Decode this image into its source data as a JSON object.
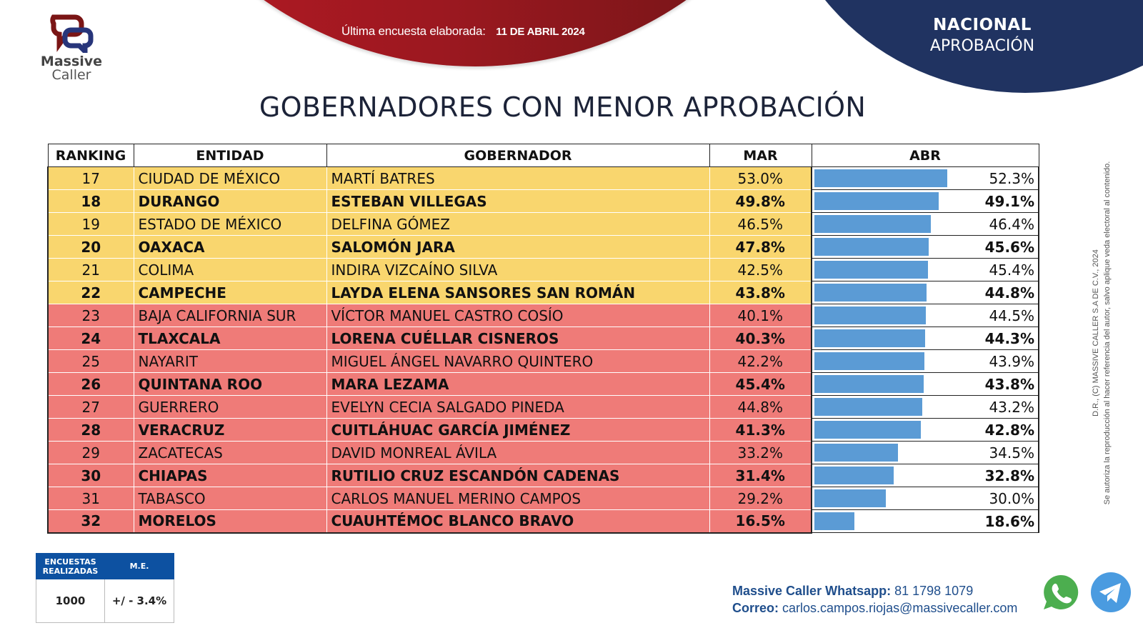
{
  "header": {
    "survey_label": "Última encuesta elaborada:",
    "survey_date": "11 DE ABRIL 2024",
    "section": "NACIONAL",
    "subsection": "APROBACIÓN"
  },
  "brand": {
    "line1": "Massive",
    "line2": "Caller"
  },
  "page_title": "GOBERNADORES CON MENOR APROBACIÓN",
  "table": {
    "headers": [
      "RANKING",
      "ENTIDAD",
      "GOBERNADOR",
      "MAR",
      "ABR"
    ]
  },
  "chart_data": {
    "type": "table",
    "title": "GOBERNADORES CON MENOR APROBACIÓN",
    "columns": [
      "RANKING",
      "ENTIDAD",
      "GOBERNADOR",
      "MAR",
      "ABR"
    ],
    "bar_column": "ABR",
    "bar_axis_range": [
      4,
      85
    ],
    "colors": {
      "yellow": "#f9d66e",
      "red": "#ef7b78",
      "bar": "#5b9bd5"
    },
    "rows": [
      {
        "rank": "17",
        "entidad": "CIUDAD DE MÉXICO",
        "gobernador": "MARTÍ BATRES",
        "mar": "53.0%",
        "abr": "52.3%",
        "abr_value": 52.3,
        "band": "yellow",
        "bold": false
      },
      {
        "rank": "18",
        "entidad": "DURANGO",
        "gobernador": "ESTEBAN VILLEGAS",
        "mar": "49.8%",
        "abr": "49.1%",
        "abr_value": 49.1,
        "band": "yellow",
        "bold": true
      },
      {
        "rank": "19",
        "entidad": "ESTADO DE MÉXICO",
        "gobernador": "DELFINA GÓMEZ",
        "mar": "46.5%",
        "abr": "46.4%",
        "abr_value": 46.4,
        "band": "yellow",
        "bold": false
      },
      {
        "rank": "20",
        "entidad": "OAXACA",
        "gobernador": "SALOMÓN JARA",
        "mar": "47.8%",
        "abr": "45.6%",
        "abr_value": 45.6,
        "band": "yellow",
        "bold": true
      },
      {
        "rank": "21",
        "entidad": "COLIMA",
        "gobernador": "INDIRA VIZCAÍNO SILVA",
        "mar": "42.5%",
        "abr": "45.4%",
        "abr_value": 45.4,
        "band": "yellow",
        "bold": false
      },
      {
        "rank": "22",
        "entidad": "CAMPECHE",
        "gobernador": "LAYDA ELENA SANSORES SAN ROMÁN",
        "mar": "43.8%",
        "abr": "44.8%",
        "abr_value": 44.8,
        "band": "yellow",
        "bold": true
      },
      {
        "rank": "23",
        "entidad": "BAJA CALIFORNIA SUR",
        "gobernador": "VÍCTOR MANUEL CASTRO COSÍO",
        "mar": "40.1%",
        "abr": "44.5%",
        "abr_value": 44.5,
        "band": "red",
        "bold": false
      },
      {
        "rank": "24",
        "entidad": "TLAXCALA",
        "gobernador": "LORENA CUÉLLAR CISNEROS",
        "mar": "40.3%",
        "abr": "44.3%",
        "abr_value": 44.3,
        "band": "red",
        "bold": true
      },
      {
        "rank": "25",
        "entidad": "NAYARIT",
        "gobernador": "MIGUEL ÁNGEL NAVARRO QUINTERO",
        "mar": "42.2%",
        "abr": "43.9%",
        "abr_value": 43.9,
        "band": "red",
        "bold": false
      },
      {
        "rank": "26",
        "entidad": "QUINTANA ROO",
        "gobernador": "MARA LEZAMA",
        "mar": "45.4%",
        "abr": "43.8%",
        "abr_value": 43.8,
        "band": "red",
        "bold": true
      },
      {
        "rank": "27",
        "entidad": "GUERRERO",
        "gobernador": "EVELYN CECIA SALGADO PINEDA",
        "mar": "44.8%",
        "abr": "43.2%",
        "abr_value": 43.2,
        "band": "red",
        "bold": false
      },
      {
        "rank": "28",
        "entidad": "VERACRUZ",
        "gobernador": "CUITLÁHUAC GARCÍA JIMÉNEZ",
        "mar": "41.3%",
        "abr": "42.8%",
        "abr_value": 42.8,
        "band": "red",
        "bold": true
      },
      {
        "rank": "29",
        "entidad": "ZACATECAS",
        "gobernador": "DAVID MONREAL ÁVILA",
        "mar": "33.2%",
        "abr": "34.5%",
        "abr_value": 34.5,
        "band": "red",
        "bold": false
      },
      {
        "rank": "30",
        "entidad": "CHIAPAS",
        "gobernador": "RUTILIO CRUZ ESCANDÓN CADENAS",
        "mar": "31.4%",
        "abr": "32.8%",
        "abr_value": 32.8,
        "band": "red",
        "bold": true
      },
      {
        "rank": "31",
        "entidad": "TABASCO",
        "gobernador": "CARLOS MANUEL MERINO CAMPOS",
        "mar": "29.2%",
        "abr": "30.0%",
        "abr_value": 30.0,
        "band": "red",
        "bold": false
      },
      {
        "rank": "32",
        "entidad": "MORELOS",
        "gobernador": "CUAUHTÉMOC BLANCO BRAVO",
        "mar": "16.5%",
        "abr": "18.6%",
        "abr_value": 18.6,
        "band": "red",
        "bold": true
      }
    ]
  },
  "stats": {
    "header_1_line1": "ENCUESTAS",
    "header_1_line2": "REALIZADAS",
    "header_2": "M.E.",
    "surveys": "1000",
    "margin_error": "+/ - 3.4%"
  },
  "contact": {
    "whatsapp_label": "Massive Caller Whatsapp:",
    "whatsapp_number": "81 1798 1079",
    "email_label": "Correo:",
    "email": "carlos.campos.riojas@massivecaller.com"
  },
  "copyright": {
    "line1": "D.R., (C) MASSIVE CALLER S.A DE C.V., 2024",
    "line2": "Se autoriza la reproducción al hacer referencia del autor, salvo aplique veda electoral al contenido."
  }
}
